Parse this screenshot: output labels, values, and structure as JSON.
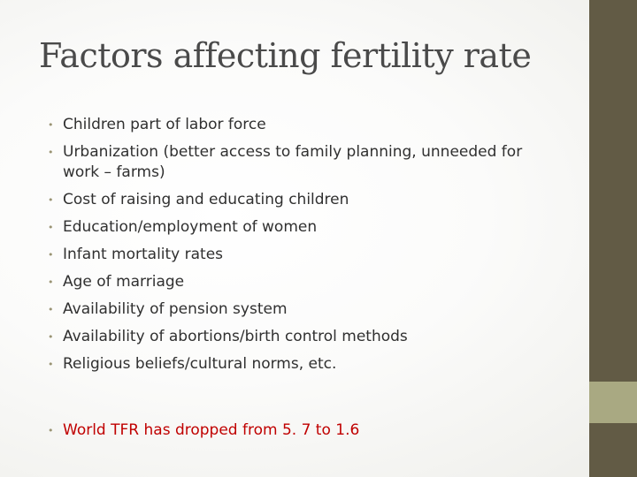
{
  "slide": {
    "title": "Factors affecting fertility rate",
    "bullet_glyph": "•",
    "bullets": [
      "Children part of labor force",
      "Urbanization (better access to family planning, unneeded for work – farms)",
      "Cost of raising and educating children",
      "Education/employment of women",
      "Infant mortality rates",
      "Age of marriage",
      "Availability of pension system",
      "Availability of abortions/birth control methods",
      "Religious beliefs/cultural norms, etc."
    ],
    "highlight": "World TFR has dropped from 5. 7 to 1.6"
  },
  "colors": {
    "title": "#4a4a4a",
    "body_text": "#303030",
    "bullet": "#9a9474",
    "highlight_text": "#c00000",
    "sidebar": "#625b45",
    "sidebar_accent": "#a9a982"
  }
}
